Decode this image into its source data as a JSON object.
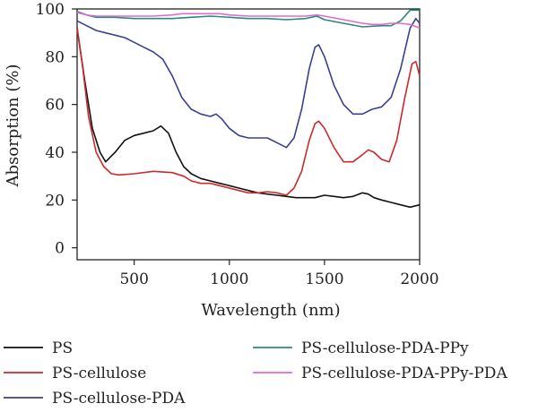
{
  "chart_data": {
    "type": "line",
    "title": "",
    "xlabel": "Wavelength (nm)",
    "ylabel": "Absorption (%)",
    "xlim": [
      200,
      2000
    ],
    "ylim": [
      -5,
      100
    ],
    "x_ticks": [
      500,
      1000,
      1500,
      2000
    ],
    "y_ticks": [
      0,
      20,
      40,
      60,
      80,
      100
    ],
    "grid": false,
    "legend_position": "bottom",
    "series": [
      {
        "name": "PS",
        "color": "#111111",
        "x": [
          200,
          240,
          280,
          320,
          350,
          400,
          450,
          500,
          550,
          600,
          640,
          680,
          720,
          760,
          800,
          850,
          900,
          950,
          1000,
          1050,
          1100,
          1150,
          1200,
          1250,
          1300,
          1350,
          1400,
          1450,
          1500,
          1550,
          1600,
          1650,
          1700,
          1730,
          1760,
          1800,
          1850,
          1900,
          1950,
          2000
        ],
        "y": [
          92,
          70,
          50,
          40,
          36,
          40,
          45,
          47,
          48,
          49,
          51,
          48,
          40,
          34,
          31,
          29,
          28,
          27,
          26,
          25,
          24,
          23,
          22.5,
          22,
          21.5,
          21,
          21,
          21,
          22,
          21.5,
          21,
          21.5,
          23,
          22.5,
          21,
          20,
          19,
          18,
          17,
          18
        ]
      },
      {
        "name": "PS-cellulose",
        "color": "#cc2a2a",
        "x": [
          200,
          230,
          260,
          300,
          340,
          380,
          420,
          500,
          600,
          700,
          760,
          800,
          850,
          900,
          950,
          1000,
          1050,
          1100,
          1150,
          1200,
          1250,
          1300,
          1340,
          1380,
          1420,
          1450,
          1470,
          1500,
          1550,
          1600,
          1650,
          1700,
          1730,
          1760,
          1800,
          1840,
          1880,
          1920,
          1960,
          1980,
          2000
        ],
        "y": [
          92,
          75,
          55,
          40,
          34,
          31,
          30.5,
          31,
          32,
          31.5,
          30,
          28,
          27,
          27,
          26,
          25,
          24,
          23,
          23,
          23.5,
          23,
          22,
          25,
          32,
          45,
          52,
          53,
          50,
          42,
          36,
          36,
          39,
          41,
          40,
          37,
          36,
          45,
          62,
          77,
          78,
          72
        ]
      },
      {
        "name": "PS-cellulose-PDA",
        "color": "#3a3f96",
        "x": [
          200,
          250,
          300,
          350,
          400,
          450,
          500,
          550,
          600,
          650,
          700,
          750,
          800,
          850,
          900,
          930,
          960,
          1000,
          1050,
          1100,
          1150,
          1200,
          1250,
          1300,
          1340,
          1380,
          1420,
          1450,
          1470,
          1500,
          1550,
          1600,
          1650,
          1700,
          1750,
          1800,
          1850,
          1900,
          1950,
          1980,
          2000
        ],
        "y": [
          95,
          93,
          91,
          90,
          89,
          88,
          86,
          84,
          82,
          79,
          72,
          63,
          58,
          56,
          55,
          56,
          54,
          50,
          47,
          46,
          46,
          46,
          44,
          42,
          46,
          58,
          75,
          84,
          85,
          80,
          68,
          60,
          56,
          56,
          58,
          59,
          63,
          75,
          92,
          96,
          94
        ]
      },
      {
        "name": "PS-cellulose-PDA-PPy",
        "color": "#2a8a7e",
        "x": [
          200,
          250,
          300,
          400,
          500,
          600,
          700,
          800,
          900,
          1000,
          1100,
          1200,
          1300,
          1400,
          1460,
          1500,
          1600,
          1700,
          1800,
          1850,
          1900,
          1950,
          2000
        ],
        "y": [
          99,
          97.5,
          96.5,
          96.5,
          96,
          96,
          96,
          96.5,
          97,
          96.5,
          96,
          96,
          95.5,
          96,
          97,
          95.5,
          94,
          92.5,
          93,
          93,
          95,
          99.5,
          99.5
        ]
      },
      {
        "name": "PS-cellulose-PDA-PPy-PDA",
        "color": "#e06ad2",
        "x": [
          200,
          250,
          300,
          400,
          500,
          600,
          700,
          750,
          800,
          900,
          950,
          1000,
          1100,
          1200,
          1300,
          1400,
          1460,
          1500,
          1600,
          1700,
          1750,
          1800,
          1850,
          1900,
          1950,
          2000
        ],
        "y": [
          98.5,
          97.5,
          97,
          97,
          97,
          97,
          97.5,
          98,
          98,
          98,
          98,
          97.5,
          97,
          97,
          97,
          97,
          97.5,
          97,
          95.5,
          94,
          93.5,
          93.5,
          94,
          94,
          93.5,
          92
        ]
      }
    ]
  }
}
